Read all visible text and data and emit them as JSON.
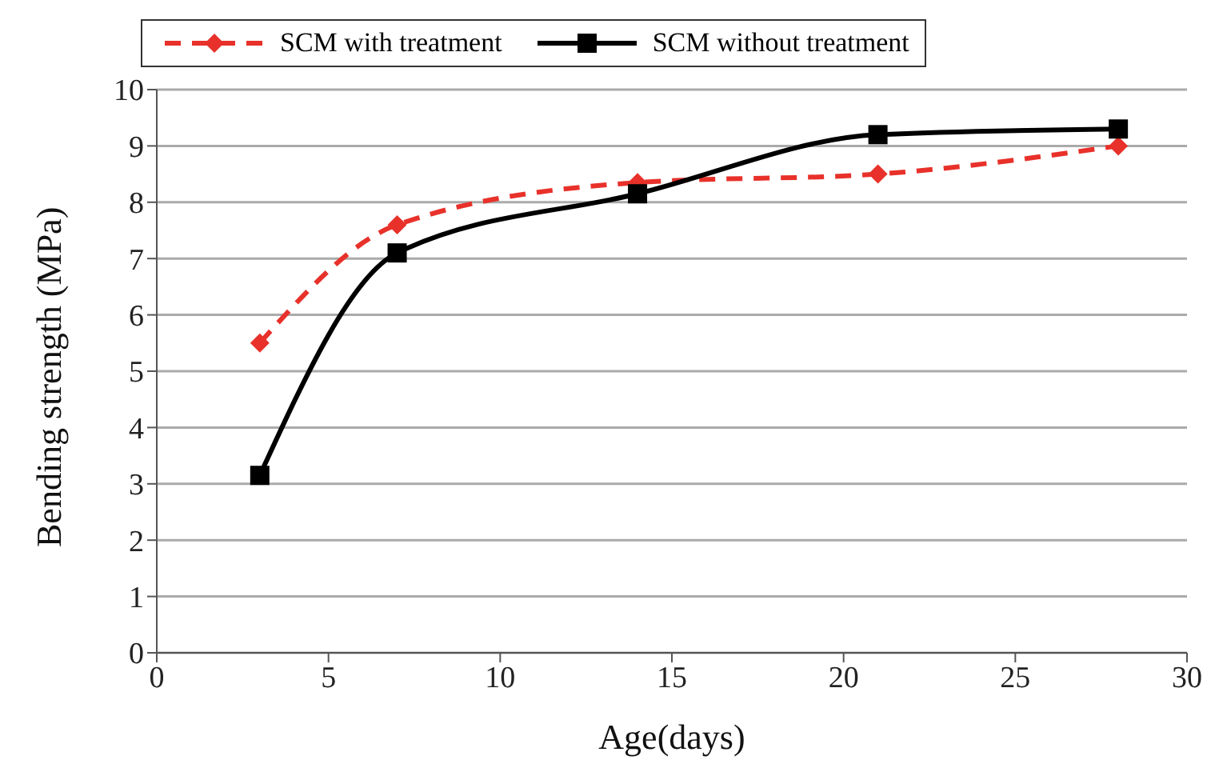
{
  "chart_data": {
    "type": "line",
    "xlabel": "Age(days)",
    "ylabel": "Bending strength (MPa)",
    "x": [
      3,
      7,
      14,
      21,
      28
    ],
    "series": [
      {
        "name": "SCM with treatment",
        "color": "#e8312a",
        "values": [
          5.5,
          7.6,
          8.35,
          8.5,
          9.0
        ],
        "marker": "diamond",
        "line_style": "dashed"
      },
      {
        "name": "SCM without treatment",
        "color": "#000000",
        "values": [
          3.15,
          7.1,
          8.15,
          9.2,
          9.3
        ],
        "marker": "square",
        "line_style": "solid"
      }
    ],
    "xlim": [
      0,
      30
    ],
    "xticks": [
      0,
      5,
      10,
      15,
      20,
      25,
      30
    ],
    "ylim": [
      0,
      10
    ],
    "yticks": [
      0,
      1,
      2,
      3,
      4,
      5,
      6,
      7,
      8,
      9,
      10
    ],
    "grid": "y",
    "legend": "top"
  }
}
